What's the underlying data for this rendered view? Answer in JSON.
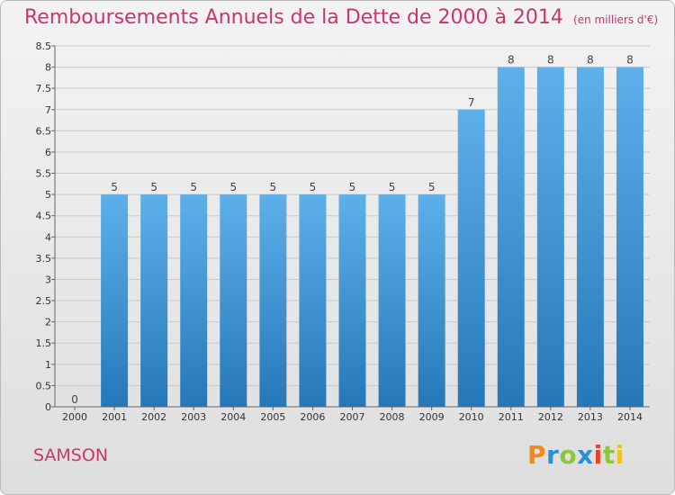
{
  "header": {
    "title": "Remboursements Annuels de la Dette de 2000 à 2014",
    "unit": "(en milliers d'€)"
  },
  "footer": {
    "commune": "SAMSON",
    "logo_text": "Proxiti",
    "logo_colors": [
      "#f08a1d",
      "#2a8fd6",
      "#8cc63f",
      "#2a8fd6",
      "#e8412b",
      "#8cc63f",
      "#f0c419"
    ]
  },
  "colors": {
    "accent": "#c8366d",
    "bar_top": "#5eb0ea",
    "bar_bottom": "#2677b8",
    "grid": "#c9c9c9",
    "axis": "#666666"
  },
  "chart_data": {
    "type": "bar",
    "title": "Remboursements Annuels de la Dette de 2000 à 2014",
    "xlabel": "",
    "ylabel": "",
    "categories": [
      "2000",
      "2001",
      "2002",
      "2003",
      "2004",
      "2005",
      "2006",
      "2007",
      "2008",
      "2009",
      "2010",
      "2011",
      "2012",
      "2013",
      "2014"
    ],
    "values": [
      0,
      5,
      5,
      5,
      5,
      5,
      5,
      5,
      5,
      5,
      7,
      8,
      8,
      8,
      8
    ],
    "data_labels": [
      "0",
      "5",
      "5",
      "5",
      "5",
      "5",
      "5",
      "5",
      "5",
      "5",
      "7",
      "8",
      "8",
      "8",
      "8"
    ],
    "ylim": [
      0,
      8.5
    ],
    "yticks": [
      0,
      0.5,
      1,
      1.5,
      2,
      2.5,
      3,
      3.5,
      4,
      4.5,
      5,
      5.5,
      6,
      6.5,
      7,
      7.5,
      8,
      8.5
    ],
    "ytick_labels": [
      "0",
      "0.5",
      "1",
      "1.5",
      "2",
      "2.5",
      "3",
      "3.5",
      "4",
      "4.5",
      "5",
      "5.5",
      "6",
      "6.5",
      "7",
      "7.5",
      "8",
      "8.5"
    ],
    "grid": true,
    "legend": "none"
  }
}
